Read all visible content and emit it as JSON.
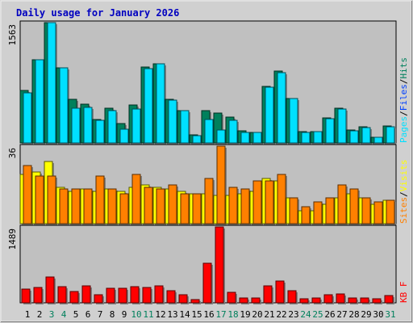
{
  "chart_data": [
    {
      "type": "bar",
      "title": "Daily usage for January 2026",
      "ylim": [
        0,
        1563
      ],
      "y_tick_label": "1563",
      "legend": [
        {
          "label": "Pages",
          "color": "#00e0ff"
        },
        {
          "label": "Files",
          "color": "#0040ff"
        },
        {
          "label": "Hits",
          "color": "#00805c"
        }
      ],
      "categories": [
        "1",
        "2",
        "3",
        "4",
        "5",
        "6",
        "7",
        "8",
        "9",
        "10",
        "11",
        "12",
        "13",
        "14",
        "15",
        "16",
        "17",
        "18",
        "19",
        "20",
        "21",
        "22",
        "23",
        "24",
        "25",
        "26",
        "27",
        "28",
        "29",
        "30",
        "31"
      ],
      "weekend_color": "#00805c",
      "weekend_days": [
        "3",
        "4",
        "10",
        "11",
        "17",
        "18",
        "24",
        "25",
        "31"
      ],
      "series": [
        {
          "name": "Hits",
          "color": "#00805c",
          "values": [
            680,
            1080,
            1563,
            980,
            570,
            500,
            300,
            450,
            250,
            490,
            990,
            1030,
            570,
            420,
            100,
            420,
            390,
            340,
            160,
            140,
            730,
            930,
            580,
            145,
            150,
            320,
            450,
            165,
            210,
            75,
            220
          ]
        },
        {
          "name": "Pages",
          "color": "#00e0ff",
          "values": [
            650,
            1080,
            1563,
            980,
            450,
            460,
            290,
            420,
            180,
            440,
            970,
            1030,
            560,
            420,
            90,
            300,
            170,
            290,
            140,
            140,
            720,
            910,
            580,
            140,
            145,
            310,
            440,
            155,
            200,
            70,
            215
          ]
        }
      ]
    },
    {
      "type": "bar",
      "ylim": [
        0,
        36
      ],
      "y_tick_label": "36",
      "legend": [
        {
          "label": "Sites",
          "color": "#ff8000"
        },
        {
          "label": "Visits",
          "color": "#ffff00"
        }
      ],
      "categories": [
        "1",
        "2",
        "3",
        "4",
        "5",
        "6",
        "7",
        "8",
        "9",
        "10",
        "11",
        "12",
        "13",
        "14",
        "15",
        "16",
        "17",
        "18",
        "19",
        "20",
        "21",
        "22",
        "23",
        "24",
        "25",
        "26",
        "27",
        "28",
        "29",
        "30",
        "31"
      ],
      "series": [
        {
          "name": "Visits",
          "color": "#ffff00",
          "values": [
            23,
            24,
            29,
            17,
            15,
            16,
            15,
            16,
            15,
            17,
            18,
            17,
            16,
            15,
            14,
            14,
            13,
            13,
            14,
            15,
            21,
            20,
            12,
            6,
            6,
            9,
            12,
            14,
            12,
            9,
            11
          ]
        },
        {
          "name": "Sites",
          "color": "#ff8000",
          "values": [
            27,
            22,
            22,
            16,
            16,
            16,
            22,
            16,
            14,
            23,
            17,
            16,
            18,
            14,
            14,
            21,
            36,
            17,
            16,
            20,
            20,
            23,
            12,
            8,
            10,
            12,
            18,
            16,
            12,
            10,
            11
          ]
        }
      ]
    },
    {
      "type": "bar",
      "ylim": [
        0,
        1489
      ],
      "y_tick_label": "1489",
      "legend": [
        {
          "label": "KB F",
          "color": "#ff0000"
        }
      ],
      "categories": [
        "1",
        "2",
        "3",
        "4",
        "5",
        "6",
        "7",
        "8",
        "9",
        "10",
        "11",
        "12",
        "13",
        "14",
        "15",
        "16",
        "17",
        "18",
        "19",
        "20",
        "21",
        "22",
        "23",
        "24",
        "25",
        "26",
        "27",
        "28",
        "29",
        "30",
        "31"
      ],
      "series": [
        {
          "name": "KB F",
          "color": "#ff0000",
          "values": [
            270,
            300,
            510,
            310,
            220,
            330,
            160,
            290,
            280,
            310,
            300,
            340,
            240,
            160,
            60,
            770,
            1489,
            200,
            100,
            100,
            330,
            420,
            230,
            80,
            100,
            160,
            180,
            100,
            100,
            80,
            140
          ]
        }
      ]
    }
  ]
}
